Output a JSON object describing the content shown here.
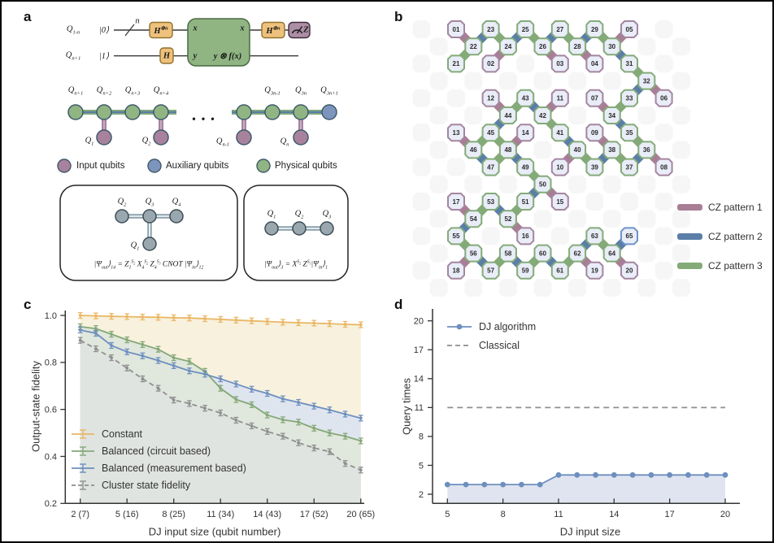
{
  "panels": {
    "a": "a",
    "b": "b",
    "c": "c",
    "d": "d"
  },
  "panel_a": {
    "circuit": {
      "wire1_qubit": "Q_{1-n}",
      "wire1_ket": "|0⟩",
      "bus_width": "n",
      "wire2_qubit": "Q_{n+1}",
      "wire2_ket": "|1⟩",
      "hadamard_n": "H^{⊗n}",
      "hadamard": "H",
      "oracle_top_in": "x",
      "oracle_top_out": "x",
      "oracle_bottom_in": "y",
      "oracle_bottom_out": "y ⊗ f(x)",
      "measure": "Z"
    },
    "chain": {
      "top_labels": [
        "Q_{n+1}",
        "Q_{n+2}",
        "Q_{n+3}",
        "Q_{n+4}",
        "Q_{3n-1}",
        "Q_{3n}",
        "Q_{3n+1}"
      ],
      "hanging_labels": [
        "Q_1",
        "Q_2",
        "Q_{n-1}",
        "Q_n"
      ],
      "dots": "•  •  •"
    },
    "legend": [
      {
        "label": "Input qubits",
        "color": "#a8829d"
      },
      {
        "label": "Auxiliary qubits",
        "color": "#7d95bd"
      },
      {
        "label": "Physical qubits",
        "color": "#90b583"
      }
    ],
    "inset_left": {
      "labels": [
        "Q_2",
        "Q_3",
        "Q_4",
        "Q_1"
      ],
      "formula": "|Ψ_{out}⟩_{14} = Z_1^{S_2} X_4^{S_2} Z_4^{S_3} CNOT |Ψ_{in}⟩_{12}"
    },
    "inset_right": {
      "labels": [
        "Q_1",
        "Q_2",
        "Q_3"
      ],
      "formula": "|Ψ_{out}⟩_3 = X^{S_2} Z^{S_1}|Ψ_{in}⟩_1"
    }
  },
  "panel_b": {
    "colors": {
      "input": "#a585a0",
      "physical": "#84ab79",
      "auxiliary": "#6f94c6",
      "pattern1": "#a87e95",
      "pattern2": "#5a7ea8",
      "pattern3": "#84aa78",
      "node_fill": "#e9edf8"
    },
    "node_types": {
      "i": "input",
      "p": "physical",
      "x": "auxiliary"
    },
    "nodes": [
      [
        "01",
        0,
        0,
        "i"
      ],
      [
        "23",
        2,
        0,
        "p"
      ],
      [
        "25",
        4,
        0,
        "p"
      ],
      [
        "27",
        6,
        0,
        "p"
      ],
      [
        "29",
        8,
        0,
        "p"
      ],
      [
        "05",
        10,
        0,
        "i"
      ],
      [
        "22",
        1,
        1,
        "p"
      ],
      [
        "24",
        3,
        1,
        "p"
      ],
      [
        "26",
        5,
        1,
        "p"
      ],
      [
        "28",
        7,
        1,
        "p"
      ],
      [
        "30",
        9,
        1,
        "p"
      ],
      [
        "21",
        0,
        2,
        "p"
      ],
      [
        "02",
        2,
        2,
        "i"
      ],
      [
        "03",
        6,
        2,
        "i"
      ],
      [
        "04",
        8,
        2,
        "i"
      ],
      [
        "31",
        10,
        2,
        "p"
      ],
      [
        "32",
        11,
        3,
        "p"
      ],
      [
        "12",
        2,
        4,
        "i"
      ],
      [
        "43",
        4,
        4,
        "p"
      ],
      [
        "11",
        6,
        4,
        "i"
      ],
      [
        "07",
        8,
        4,
        "i"
      ],
      [
        "33",
        10,
        4,
        "p"
      ],
      [
        "06",
        12,
        4,
        "i"
      ],
      [
        "44",
        3,
        5,
        "p"
      ],
      [
        "42",
        5,
        5,
        "p"
      ],
      [
        "34",
        9,
        5,
        "p"
      ],
      [
        "13",
        0,
        6,
        "i"
      ],
      [
        "45",
        2,
        6,
        "p"
      ],
      [
        "14",
        4,
        6,
        "i"
      ],
      [
        "41",
        6,
        6,
        "p"
      ],
      [
        "09",
        8,
        6,
        "i"
      ],
      [
        "35",
        10,
        6,
        "p"
      ],
      [
        "46",
        1,
        7,
        "p"
      ],
      [
        "48",
        3,
        7,
        "p"
      ],
      [
        "40",
        7,
        7,
        "p"
      ],
      [
        "38",
        9,
        7,
        "p"
      ],
      [
        "36",
        11,
        7,
        "p"
      ],
      [
        "47",
        2,
        8,
        "p"
      ],
      [
        "49",
        4,
        8,
        "p"
      ],
      [
        "10",
        6,
        8,
        "i"
      ],
      [
        "39",
        8,
        8,
        "p"
      ],
      [
        "37",
        10,
        8,
        "p"
      ],
      [
        "08",
        12,
        8,
        "i"
      ],
      [
        "50",
        5,
        9,
        "p"
      ],
      [
        "17",
        0,
        10,
        "i"
      ],
      [
        "53",
        2,
        10,
        "p"
      ],
      [
        "51",
        4,
        10,
        "p"
      ],
      [
        "15",
        6,
        10,
        "i"
      ],
      [
        "54",
        1,
        11,
        "p"
      ],
      [
        "52",
        3,
        11,
        "p"
      ],
      [
        "55",
        0,
        12,
        "p"
      ],
      [
        "16",
        4,
        12,
        "i"
      ],
      [
        "63",
        8,
        12,
        "p"
      ],
      [
        "65",
        10,
        12,
        "x"
      ],
      [
        "56",
        1,
        13,
        "p"
      ],
      [
        "58",
        3,
        13,
        "p"
      ],
      [
        "60",
        5,
        13,
        "p"
      ],
      [
        "62",
        7,
        13,
        "p"
      ],
      [
        "64",
        9,
        13,
        "p"
      ],
      [
        "18",
        0,
        14,
        "i"
      ],
      [
        "57",
        2,
        14,
        "p"
      ],
      [
        "59",
        4,
        14,
        "p"
      ],
      [
        "61",
        6,
        14,
        "p"
      ],
      [
        "19",
        8,
        14,
        "i"
      ],
      [
        "20",
        10,
        14,
        "i"
      ]
    ],
    "edges": [
      [
        "01",
        "22",
        1
      ],
      [
        "22",
        "23",
        2
      ],
      [
        "23",
        "24",
        3
      ],
      [
        "24",
        "25",
        2
      ],
      [
        "25",
        "26",
        3
      ],
      [
        "26",
        "27",
        2
      ],
      [
        "27",
        "28",
        3
      ],
      [
        "28",
        "29",
        2
      ],
      [
        "29",
        "30",
        3
      ],
      [
        "21",
        "22",
        3
      ],
      [
        "02",
        "24",
        1
      ],
      [
        "03",
        "26",
        1
      ],
      [
        "04",
        "28",
        1
      ],
      [
        "05",
        "30",
        1
      ],
      [
        "30",
        "31",
        2
      ],
      [
        "31",
        "32",
        3
      ],
      [
        "32",
        "33",
        2
      ],
      [
        "06",
        "32",
        1
      ],
      [
        "12",
        "44",
        1
      ],
      [
        "43",
        "44",
        3
      ],
      [
        "42",
        "43",
        2
      ],
      [
        "11",
        "42",
        1
      ],
      [
        "41",
        "42",
        3
      ],
      [
        "07",
        "34",
        1
      ],
      [
        "33",
        "34",
        3
      ],
      [
        "44",
        "45",
        2
      ],
      [
        "34",
        "35",
        2
      ],
      [
        "13",
        "46",
        1
      ],
      [
        "45",
        "46",
        3
      ],
      [
        "14",
        "48",
        1
      ],
      [
        "45",
        "48",
        3
      ],
      [
        "46",
        "47",
        2
      ],
      [
        "47",
        "48",
        3
      ],
      [
        "48",
        "49",
        2
      ],
      [
        "40",
        "41",
        2
      ],
      [
        "09",
        "38",
        1
      ],
      [
        "35",
        "36",
        3
      ],
      [
        "39",
        "40",
        3
      ],
      [
        "10",
        "40",
        1
      ],
      [
        "38",
        "39",
        2
      ],
      [
        "37",
        "38",
        3
      ],
      [
        "36",
        "37",
        2
      ],
      [
        "08",
        "36",
        1
      ],
      [
        "49",
        "50",
        3
      ],
      [
        "50",
        "51",
        2
      ],
      [
        "15",
        "50",
        1
      ],
      [
        "17",
        "54",
        1
      ],
      [
        "53",
        "54",
        3
      ],
      [
        "52",
        "53",
        2
      ],
      [
        "51",
        "52",
        3
      ],
      [
        "54",
        "55",
        2
      ],
      [
        "16",
        "52",
        1
      ],
      [
        "55",
        "56",
        3
      ],
      [
        "18",
        "56",
        1
      ],
      [
        "56",
        "57",
        2
      ],
      [
        "57",
        "58",
        3
      ],
      [
        "58",
        "59",
        2
      ],
      [
        "59",
        "60",
        3
      ],
      [
        "60",
        "61",
        2
      ],
      [
        "61",
        "62",
        3
      ],
      [
        "19",
        "62",
        1
      ],
      [
        "62",
        "63",
        2
      ],
      [
        "63",
        "64",
        3
      ],
      [
        "64",
        "65",
        2
      ],
      [
        "20",
        "64",
        1
      ]
    ],
    "legend": [
      {
        "label": "CZ pattern 1",
        "color": "#a87e95"
      },
      {
        "label": "CZ pattern 2",
        "color": "#5a7ea8"
      },
      {
        "label": "CZ pattern 3",
        "color": "#84aa78"
      }
    ]
  },
  "chart_data": [
    {
      "type": "line",
      "panel": "c",
      "xlabel": "DJ input size (qubit number)",
      "ylabel": "Output-state fidelity",
      "x": [
        2,
        3,
        4,
        5,
        6,
        7,
        8,
        9,
        10,
        11,
        12,
        13,
        14,
        15,
        16,
        17,
        18,
        19,
        20
      ],
      "xticks": [
        2,
        5,
        8,
        11,
        14,
        17,
        20
      ],
      "xtick_labels": [
        "2 (7)",
        "5 (16)",
        "8 (25)",
        "11 (34)",
        "14 (43)",
        "17 (52)",
        "20 (65)"
      ],
      "ylim": [
        0.2,
        1.0
      ],
      "yticks": [
        0.2,
        0.4,
        0.6,
        0.8,
        1.0
      ],
      "grid": false,
      "legend_position": "lower left",
      "error_bar": 0.012,
      "series": [
        {
          "name": "Constant",
          "color": "#e9b765",
          "line": "solid",
          "fill": "#f8f1dd",
          "values": [
            1.0,
            0.998,
            0.996,
            0.995,
            0.993,
            0.992,
            0.99,
            0.989,
            0.986,
            0.983,
            0.98,
            0.977,
            0.974,
            0.971,
            0.969,
            0.967,
            0.965,
            0.962,
            0.96
          ]
        },
        {
          "name": "Balanced (circuit based)",
          "color": "#85a878",
          "line": "solid",
          "fill": "#e0e7dc",
          "values": [
            0.952,
            0.944,
            0.92,
            0.896,
            0.876,
            0.856,
            0.82,
            0.804,
            0.762,
            0.69,
            0.642,
            0.62,
            0.576,
            0.556,
            0.546,
            0.52,
            0.5,
            0.486,
            0.466
          ]
        },
        {
          "name": "Balanced (measurement based)",
          "color": "#6d8fbf",
          "line": "solid",
          "fill": "#dfe5ef",
          "values": [
            0.938,
            0.924,
            0.872,
            0.845,
            0.828,
            0.808,
            0.786,
            0.764,
            0.75,
            0.73,
            0.708,
            0.686,
            0.668,
            0.645,
            0.63,
            0.614,
            0.598,
            0.58,
            0.563
          ]
        },
        {
          "name": "Cluster state fidelity",
          "color": "#8f8f8f",
          "line": "dashed",
          "fill": "#e0e4e0",
          "values": [
            0.894,
            0.858,
            0.82,
            0.776,
            0.73,
            0.69,
            0.64,
            0.625,
            0.605,
            0.585,
            0.554,
            0.53,
            0.506,
            0.486,
            0.458,
            0.436,
            0.42,
            0.37,
            0.342
          ]
        }
      ]
    },
    {
      "type": "line",
      "panel": "d",
      "xlabel": "DJ input size",
      "ylabel": "Query times",
      "x": [
        5,
        6,
        7,
        8,
        9,
        10,
        11,
        12,
        13,
        14,
        15,
        16,
        17,
        18,
        19,
        20
      ],
      "xticks": [
        5,
        8,
        11,
        14,
        17,
        20
      ],
      "ylim": [
        1,
        21
      ],
      "yticks": [
        2,
        5,
        8,
        11,
        14,
        17,
        20
      ],
      "grid": false,
      "legend_position": "upper left",
      "series": [
        {
          "name": "DJ algorithm",
          "color": "#6d8fbf",
          "line": "solid",
          "marker": "circle",
          "fill": "#dfe4f0",
          "values": [
            3,
            3,
            3,
            3,
            3,
            3,
            4,
            4,
            4,
            4,
            4,
            4,
            4,
            4,
            4,
            4
          ]
        },
        {
          "name": "Classical",
          "color": "#8f8f8f",
          "line": "dashed",
          "values": [
            11,
            11,
            11,
            11,
            11,
            11,
            11,
            11,
            11,
            11,
            11,
            11,
            11,
            11,
            11,
            11
          ]
        }
      ]
    }
  ]
}
